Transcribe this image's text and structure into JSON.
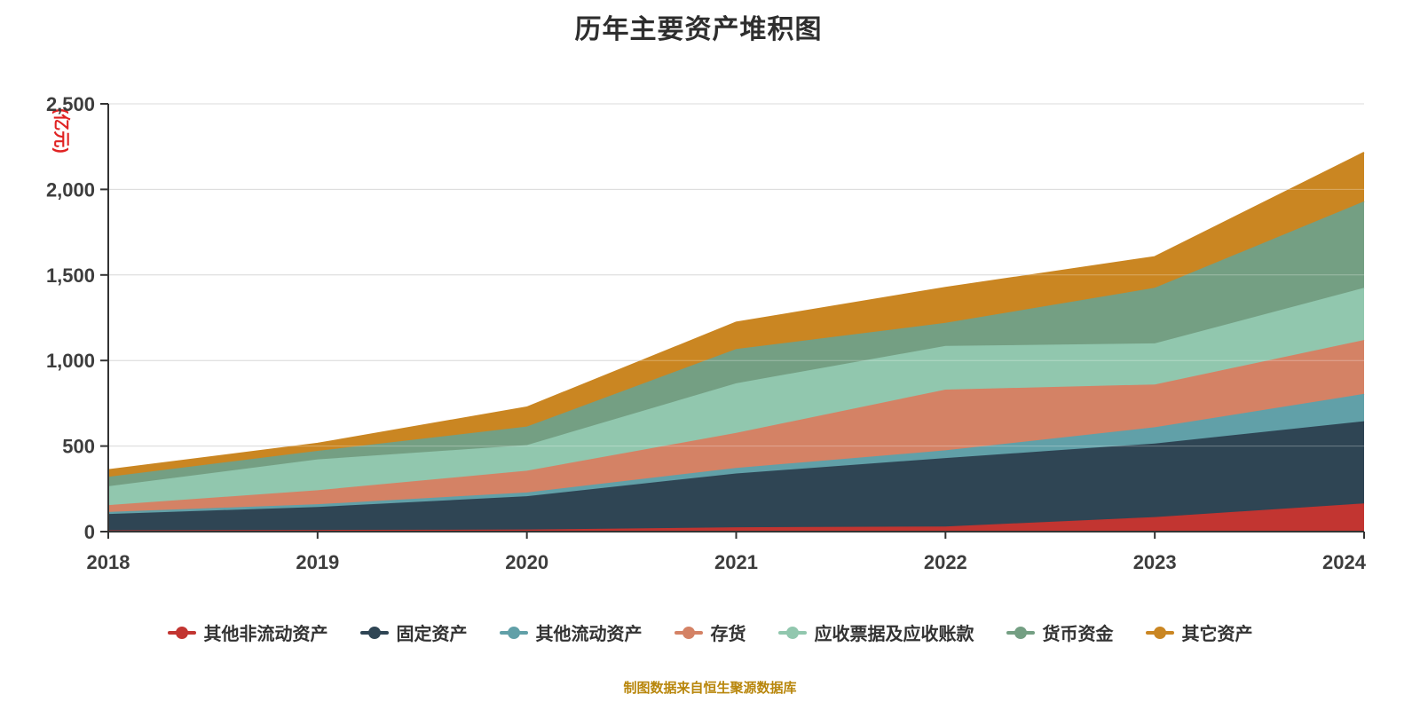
{
  "footer": {
    "source_text": "制图数据来自恒生聚源数据库"
  },
  "colors": {
    "title_text": "#2e2e2e",
    "axis_line": "#333333",
    "axis_label": "#3d3d3d",
    "gridline": "#cccccc",
    "y_axis_name": "#e02222",
    "footer_text": "#b8860b",
    "background": "#ffffff"
  },
  "chart_data": {
    "type": "area",
    "stacked": true,
    "title": "历年主要资产堆积图",
    "x": [
      "2018",
      "2019",
      "2020",
      "2021",
      "2022",
      "2023",
      "2024"
    ],
    "xlabel": "",
    "ylabel": "(亿元)",
    "unit": "亿元",
    "ylim": [
      0,
      2500
    ],
    "ytick_interval": 500,
    "ytick_labels": [
      "0",
      "500",
      "1,000",
      "1,500",
      "2,000",
      "2,500"
    ],
    "grid": true,
    "legend_position": "bottom",
    "series": [
      {
        "name": "其他非流动资产",
        "color": "#c23531",
        "values": [
          8,
          10,
          12,
          25,
          30,
          85,
          165
        ]
      },
      {
        "name": "固定资产",
        "color": "#2f4554",
        "values": [
          95,
          134,
          195,
          315,
          400,
          430,
          480
        ]
      },
      {
        "name": "其他流动资产",
        "color": "#61a0a8",
        "values": [
          12,
          16,
          22,
          32,
          45,
          95,
          160
        ]
      },
      {
        "name": "存货",
        "color": "#d48265",
        "values": [
          40,
          82,
          127,
          205,
          355,
          250,
          315
        ]
      },
      {
        "name": "应收票据及应收账款",
        "color": "#91c7ae",
        "values": [
          110,
          180,
          150,
          290,
          255,
          240,
          305
        ]
      },
      {
        "name": "货币资金",
        "color": "#749f83",
        "values": [
          55,
          50,
          108,
          200,
          135,
          325,
          505
        ]
      },
      {
        "name": "其它资产",
        "color": "#ca8622",
        "values": [
          40,
          42,
          112,
          155,
          205,
          180,
          285
        ]
      }
    ],
    "totals_by_year": [
      360,
      514,
      726,
      1222,
      1425,
      1605,
      2215
    ]
  }
}
